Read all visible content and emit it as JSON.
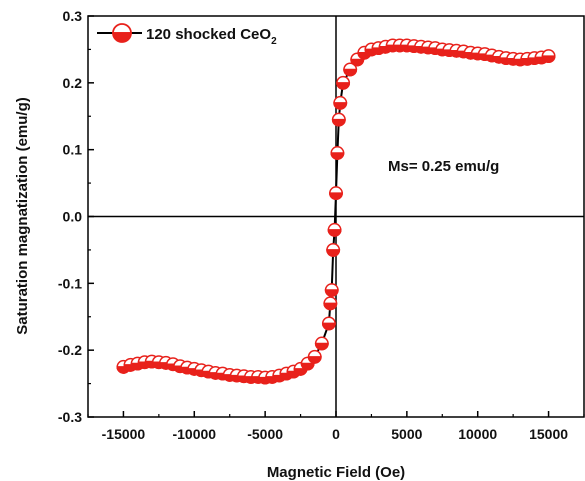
{
  "chart_data": {
    "type": "scatter",
    "xlabel": "Magnetic Field (Oe)",
    "ylabel": "Saturation magnatization (emu/g)",
    "xlim": [
      -17500,
      17500
    ],
    "ylim": [
      -0.3,
      0.3
    ],
    "x_ticks": [
      -15000,
      -10000,
      -5000,
      0,
      5000,
      10000,
      15000
    ],
    "y_ticks": [
      -0.3,
      -0.2,
      -0.1,
      0.0,
      0.1,
      0.2,
      0.3
    ],
    "x_tick_labels": [
      "-15000",
      "-10000",
      "-5000",
      "0",
      "5000",
      "10000",
      "15000"
    ],
    "y_tick_labels": [
      "-0.3",
      "-0.2",
      "-0.1",
      "0.0",
      "0.1",
      "0.2",
      "0.3"
    ],
    "legend": {
      "position": "top-left",
      "prefix": "120 shocked CeO",
      "subscript": "2"
    },
    "annotation": "Ms= 0.25 emu/g",
    "marker_color": "#e8211b",
    "line_color": "#000000",
    "zero_lines": true,
    "series": [
      {
        "name": "120 shocked CeO2",
        "x": [
          -15000,
          -14500,
          -14000,
          -13500,
          -13000,
          -12500,
          -12000,
          -11500,
          -11000,
          -10500,
          -10000,
          -9500,
          -9000,
          -8500,
          -8000,
          -7500,
          -7000,
          -6500,
          -6000,
          -5500,
          -5000,
          -4500,
          -4000,
          -3500,
          -3000,
          -2500,
          -2000,
          -1500,
          -1000,
          -500,
          -400,
          -300,
          -200,
          -100,
          0,
          100,
          200,
          300,
          500,
          1000,
          1500,
          2000,
          2500,
          3000,
          3500,
          4000,
          4500,
          5000,
          5500,
          6000,
          6500,
          7000,
          7500,
          8000,
          8500,
          9000,
          9500,
          10000,
          10500,
          11000,
          11500,
          12000,
          12500,
          13000,
          13500,
          14000,
          14500,
          15000
        ],
        "y": [
          -0.225,
          -0.222,
          -0.22,
          -0.218,
          -0.217,
          -0.218,
          -0.219,
          -0.221,
          -0.224,
          -0.226,
          -0.228,
          -0.23,
          -0.232,
          -0.234,
          -0.235,
          -0.237,
          -0.238,
          -0.239,
          -0.24,
          -0.24,
          -0.241,
          -0.24,
          -0.238,
          -0.235,
          -0.232,
          -0.228,
          -0.22,
          -0.21,
          -0.19,
          -0.16,
          -0.13,
          -0.11,
          -0.05,
          -0.02,
          0.035,
          0.095,
          0.145,
          0.17,
          0.2,
          0.22,
          0.235,
          0.245,
          0.25,
          0.252,
          0.254,
          0.256,
          0.256,
          0.256,
          0.255,
          0.254,
          0.253,
          0.252,
          0.25,
          0.249,
          0.248,
          0.247,
          0.245,
          0.244,
          0.243,
          0.241,
          0.239,
          0.237,
          0.236,
          0.235,
          0.236,
          0.237,
          0.238,
          0.24
        ]
      }
    ]
  }
}
